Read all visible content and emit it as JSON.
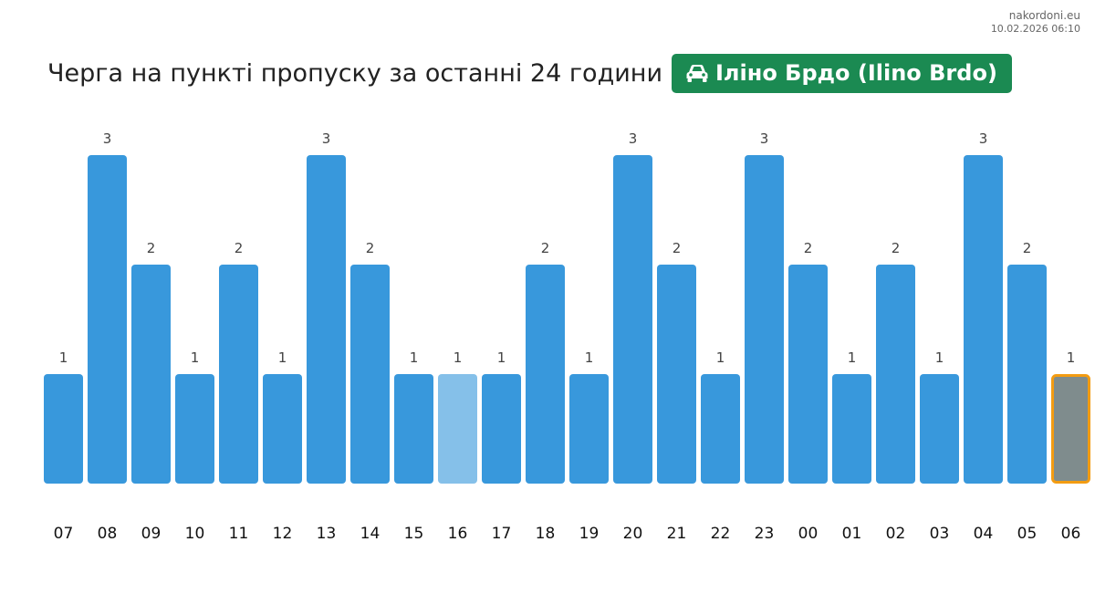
{
  "brand": {
    "site": "nakordoni.eu",
    "timestamp": "10.02.2026 06:10"
  },
  "header": {
    "title": "Черга на пункті пропуску за останні 24 години",
    "checkpoint_badge": "Іліно Брдо (Ilino Brdo)",
    "badge_icon": "car-icon"
  },
  "colors": {
    "bar": "#3898dc",
    "bar_highlight": "#85c0e9",
    "bar_current": "#7f8c8d",
    "bar_current_outline": "#f39c12",
    "badge": "#1b8a52",
    "value_label": "#444444",
    "hour_label": "#111111"
  },
  "chart_data": {
    "type": "bar",
    "title": "Черга на пункті пропуску за останні 24 години",
    "xlabel": "",
    "ylabel": "",
    "categories": [
      "07",
      "08",
      "09",
      "10",
      "11",
      "12",
      "13",
      "14",
      "15",
      "16",
      "17",
      "18",
      "19",
      "20",
      "21",
      "22",
      "23",
      "00",
      "01",
      "02",
      "03",
      "04",
      "05",
      "06"
    ],
    "values": [
      1,
      3,
      2,
      1,
      2,
      1,
      3,
      2,
      1,
      1,
      1,
      2,
      1,
      3,
      2,
      1,
      3,
      2,
      1,
      2,
      1,
      3,
      2,
      1
    ],
    "ylim": [
      0,
      3
    ],
    "grid": false,
    "legend": "none",
    "highlighted_category": "16",
    "current_category": "06"
  }
}
